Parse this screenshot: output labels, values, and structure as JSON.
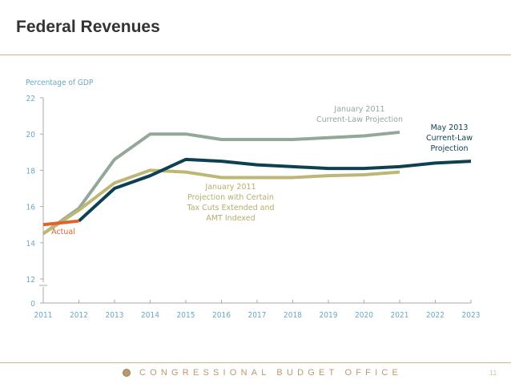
{
  "slide": {
    "title": "Federal Revenues",
    "footer": "CONGRESSIONAL BUDGET OFFICE",
    "page_number": "11"
  },
  "chart_data": {
    "type": "line",
    "title": "",
    "ylabel": "Percentage of GDP",
    "xlabel": "",
    "x": [
      2011,
      2012,
      2013,
      2014,
      2015,
      2016,
      2017,
      2018,
      2019,
      2020,
      2021,
      2022,
      2023
    ],
    "yticks": [
      0,
      12,
      14,
      16,
      18,
      20,
      22
    ],
    "ylim": [
      12,
      22
    ],
    "axis_break": "between 0 and 12",
    "grid": false,
    "series": [
      {
        "name": "Actual",
        "color": "#e0642a",
        "x": [
          2011,
          2012
        ],
        "values": [
          15.0,
          15.2
        ]
      },
      {
        "name": "January 2011 Current-Law Projection",
        "color": "#94a89a",
        "x": [
          2011,
          2012,
          2013,
          2014,
          2015,
          2016,
          2017,
          2018,
          2019,
          2020,
          2021
        ],
        "values": [
          14.5,
          15.9,
          18.6,
          20.0,
          20.0,
          19.7,
          19.7,
          19.7,
          19.8,
          19.9,
          20.1
        ]
      },
      {
        "name": "January 2011 Projection with Certain Tax Cuts Extended and AMT Indexed",
        "color": "#bdb776",
        "x": [
          2011,
          2012,
          2013,
          2014,
          2015,
          2016,
          2017,
          2018,
          2019,
          2020,
          2021
        ],
        "values": [
          14.5,
          15.8,
          17.3,
          18.0,
          17.9,
          17.6,
          17.6,
          17.6,
          17.7,
          17.75,
          17.9
        ]
      },
      {
        "name": "May 2013 Current-Law Projection",
        "color": "#0d4152",
        "x": [
          2012,
          2013,
          2014,
          2015,
          2016,
          2017,
          2018,
          2019,
          2020,
          2021,
          2022,
          2023
        ],
        "values": [
          15.2,
          17.0,
          17.7,
          18.6,
          18.5,
          18.3,
          18.2,
          18.1,
          18.1,
          18.2,
          18.4,
          18.5
        ]
      }
    ],
    "labels": {
      "actual": [
        "Actual"
      ],
      "jan2011_current": [
        "January 2011",
        "Current-Law Projection"
      ],
      "jan2011_alt": [
        "January 2011",
        "Projection with Certain",
        "Tax Cuts Extended and",
        "AMT Indexed"
      ],
      "may2013": [
        "May 2013",
        "Current-Law",
        "Projection"
      ]
    }
  }
}
